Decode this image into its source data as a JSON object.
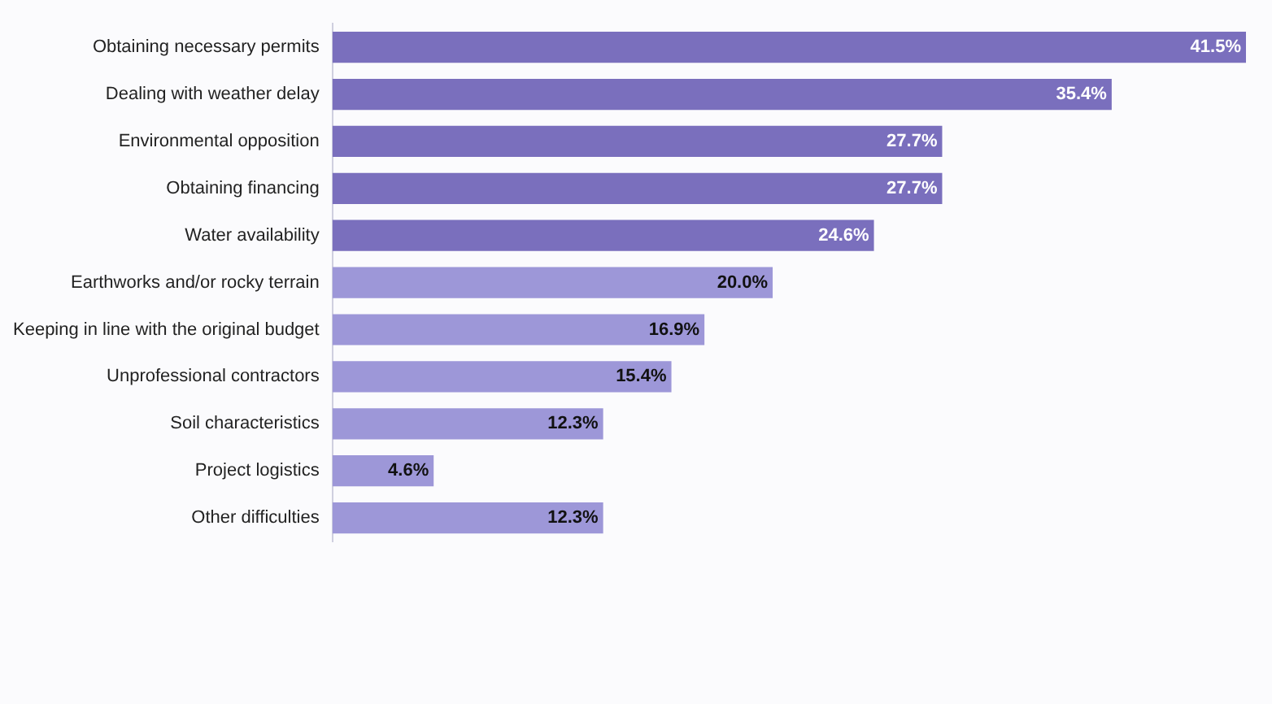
{
  "chart_data": {
    "type": "bar",
    "orientation": "horizontal",
    "data_labels": true,
    "categories": [
      "Obtaining necessary permits",
      "Dealing with weather delay",
      "Environmental opposition",
      "Obtaining financing",
      "Water availability",
      "Earthworks and/or rocky terrain",
      "Keeping in line with the original budget",
      "Unprofessional contractors",
      "Soil characteristics",
      "Project logistics",
      "Other difficulties"
    ],
    "values": [
      41.5,
      35.4,
      27.7,
      27.7,
      24.6,
      20.0,
      16.9,
      15.4,
      12.3,
      4.6,
      12.3
    ],
    "value_labels": [
      "41.5%",
      "35.4%",
      "27.7%",
      "27.7%",
      "24.6%",
      "20.0%",
      "16.9%",
      "15.4%",
      "12.3%",
      "4.6%",
      "12.3%"
    ],
    "colors": [
      "#7a6fbd",
      "#7a6fbd",
      "#7a6fbd",
      "#7a6fbd",
      "#7a6fbd",
      "#9d97d8",
      "#9d97d8",
      "#9d97d8",
      "#9d97d8",
      "#9d97d8",
      "#9d97d8"
    ]
  }
}
